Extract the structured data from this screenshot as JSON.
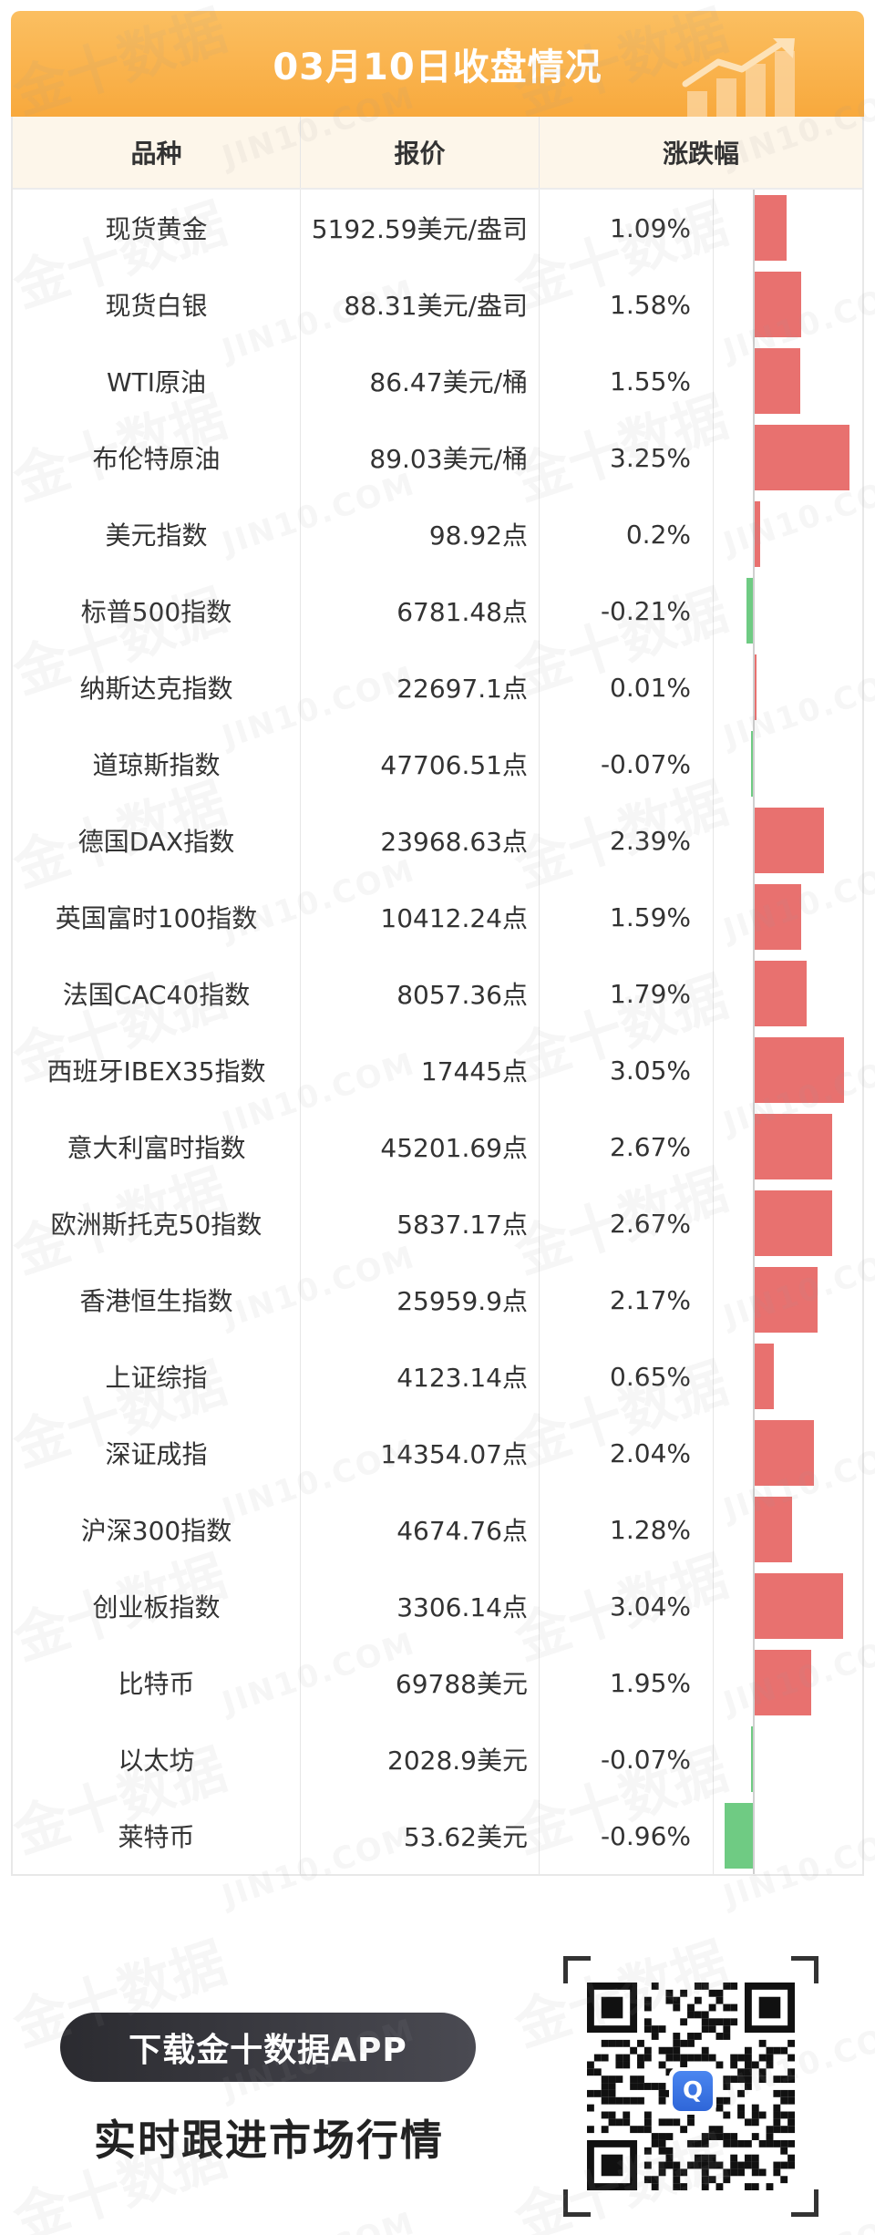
{
  "header": {
    "title": "03月10日收盘情况",
    "background_color": "#f8a93d",
    "decoration_icon": "chart-arrow-up-icon"
  },
  "columns": {
    "name": "品种",
    "price": "报价",
    "change": "涨跌幅"
  },
  "colors": {
    "positive": "#e8716f",
    "negative": "#6fcb83",
    "header_bg": "#fdf6ea"
  },
  "rows": [
    {
      "name": "现货黄金",
      "price": "5192.59美元/盎司",
      "change_text": "1.09%",
      "change": 1.09
    },
    {
      "name": "现货白银",
      "price": "88.31美元/盎司",
      "change_text": "1.58%",
      "change": 1.58
    },
    {
      "name": "WTI原油",
      "price": "86.47美元/桶",
      "change_text": "1.55%",
      "change": 1.55
    },
    {
      "name": "布伦特原油",
      "price": "89.03美元/桶",
      "change_text": "3.25%",
      "change": 3.25
    },
    {
      "name": "美元指数",
      "price": "98.92点",
      "change_text": "0.2%",
      "change": 0.2
    },
    {
      "name": "标普500指数",
      "price": "6781.48点",
      "change_text": "-0.21%",
      "change": -0.21
    },
    {
      "name": "纳斯达克指数",
      "price": "22697.1点",
      "change_text": "0.01%",
      "change": 0.01
    },
    {
      "name": "道琼斯指数",
      "price": "47706.51点",
      "change_text": "-0.07%",
      "change": -0.07
    },
    {
      "name": "德国DAX指数",
      "price": "23968.63点",
      "change_text": "2.39%",
      "change": 2.39
    },
    {
      "name": "英国富时100指数",
      "price": "10412.24点",
      "change_text": "1.59%",
      "change": 1.59
    },
    {
      "name": "法国CAC40指数",
      "price": "8057.36点",
      "change_text": "1.79%",
      "change": 1.79
    },
    {
      "name": "西班牙IBEX35指数",
      "price": "17445点",
      "change_text": "3.05%",
      "change": 3.05
    },
    {
      "name": "意大利富时指数",
      "price": "45201.69点",
      "change_text": "2.67%",
      "change": 2.67
    },
    {
      "name": "欧洲斯托克50指数",
      "price": "5837.17点",
      "change_text": "2.67%",
      "change": 2.67
    },
    {
      "name": "香港恒生指数",
      "price": "25959.9点",
      "change_text": "2.17%",
      "change": 2.17
    },
    {
      "name": "上证综指",
      "price": "4123.14点",
      "change_text": "0.65%",
      "change": 0.65
    },
    {
      "name": "深证成指",
      "price": "14354.07点",
      "change_text": "2.04%",
      "change": 2.04
    },
    {
      "name": "沪深300指数",
      "price": "4674.76点",
      "change_text": "1.28%",
      "change": 1.28
    },
    {
      "name": "创业板指数",
      "price": "3306.14点",
      "change_text": "3.04%",
      "change": 3.04
    },
    {
      "name": "比特币",
      "price": "69788美元",
      "change_text": "1.95%",
      "change": 1.95
    },
    {
      "name": "以太坊",
      "price": "2028.9美元",
      "change_text": "-0.07%",
      "change": -0.07
    },
    {
      "name": "莱特币",
      "price": "53.62美元",
      "change_text": "-0.96%",
      "change": -0.96
    }
  ],
  "watermark": {
    "cn": "金十数据",
    "en": "JIN10.COM"
  },
  "footer": {
    "download_label": "下载金十数据APP",
    "slogan": "实时跟进市场行情",
    "qr_icon": "qr-code-icon",
    "app_logo_icon": "jin10-app-logo-icon"
  }
}
